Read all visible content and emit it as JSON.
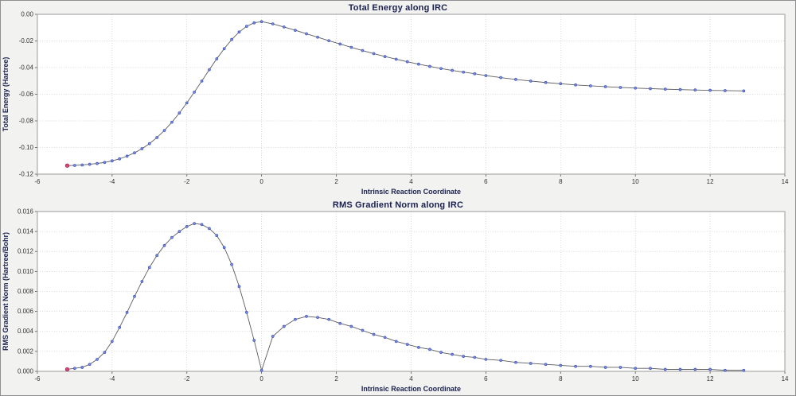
{
  "window": {
    "bg": "#f2f2f0",
    "border": "#8f8f8f"
  },
  "colors": {
    "title": "#1a2050",
    "axis_label": "#1a2050",
    "tick_label": "#333333",
    "grid": "#cbcbcb",
    "plot_border": "#9a9a9a",
    "plot_bg": "#ffffff",
    "line": "#5c5c5c",
    "marker_fill": "#7b8ede",
    "marker_edge": "#3d52c4",
    "first_point_fill": "#d04878",
    "first_point_edge": "#a82255"
  },
  "chart_data": [
    {
      "type": "line",
      "title": "Total Energy along IRC",
      "xlabel": "Intrinsic Reaction Coordinate",
      "ylabel": "Total Energy (Hartree)",
      "xlim": [
        -6,
        14
      ],
      "ylim": [
        -0.12,
        0.0
      ],
      "grid": true,
      "legend": false,
      "marker": "circle",
      "xticks": [
        -6,
        -4,
        -2,
        0,
        2,
        4,
        6,
        8,
        10,
        12,
        14
      ],
      "xtick_labels": [
        "-6",
        "-4",
        "-2",
        "0",
        "2",
        "4",
        "6",
        "8",
        "10",
        "12",
        "14"
      ],
      "yticks": [
        0.0,
        -0.02,
        -0.04,
        -0.06,
        -0.08,
        -0.1,
        -0.12
      ],
      "ytick_labels": [
        "0.00",
        "-0.02",
        "-0.04",
        "-0.06",
        "-0.08",
        "-0.10",
        "-0.12"
      ],
      "x": [
        -5.2,
        -5.0,
        -4.8,
        -4.6,
        -4.4,
        -4.2,
        -4.0,
        -3.8,
        -3.6,
        -3.4,
        -3.2,
        -3.0,
        -2.8,
        -2.6,
        -2.4,
        -2.2,
        -2.0,
        -1.8,
        -1.6,
        -1.4,
        -1.2,
        -1.0,
        -0.8,
        -0.6,
        -0.4,
        -0.2,
        0.0,
        0.3,
        0.6,
        0.9,
        1.2,
        1.5,
        1.8,
        2.1,
        2.4,
        2.7,
        3.0,
        3.3,
        3.6,
        3.9,
        4.2,
        4.5,
        4.8,
        5.1,
        5.4,
        5.7,
        6.0,
        6.4,
        6.8,
        7.2,
        7.6,
        8.0,
        8.4,
        8.8,
        9.2,
        9.6,
        10.0,
        10.4,
        10.8,
        11.2,
        11.6,
        12.0,
        12.4,
        12.9
      ],
      "y": [
        -0.1136,
        -0.1134,
        -0.1131,
        -0.1126,
        -0.112,
        -0.1112,
        -0.11,
        -0.1085,
        -0.1065,
        -0.104,
        -0.1009,
        -0.0971,
        -0.0925,
        -0.0872,
        -0.081,
        -0.0741,
        -0.0665,
        -0.0584,
        -0.0501,
        -0.0416,
        -0.0334,
        -0.0258,
        -0.0189,
        -0.0133,
        -0.009,
        -0.0064,
        -0.0055,
        -0.0072,
        -0.0095,
        -0.012,
        -0.0146,
        -0.0172,
        -0.0198,
        -0.0223,
        -0.0248,
        -0.0272,
        -0.0295,
        -0.0317,
        -0.0337,
        -0.0356,
        -0.0374,
        -0.0391,
        -0.0407,
        -0.0421,
        -0.0434,
        -0.0446,
        -0.046,
        -0.0475,
        -0.0489,
        -0.0501,
        -0.0512,
        -0.0521,
        -0.053,
        -0.0537,
        -0.0543,
        -0.0549,
        -0.0554,
        -0.0558,
        -0.0562,
        -0.0565,
        -0.0568,
        -0.0571,
        -0.0573,
        -0.0575
      ]
    },
    {
      "type": "line",
      "title": "RMS Gradient Norm along IRC",
      "xlabel": "Intrinsic Reaction Coordinate",
      "ylabel": "RMS Gradient Norm (Hartree/Bohr)",
      "xlim": [
        -6,
        14
      ],
      "ylim": [
        0.0,
        0.016
      ],
      "grid": true,
      "legend": false,
      "marker": "circle",
      "xticks": [
        -6,
        -4,
        -2,
        0,
        2,
        4,
        6,
        8,
        10,
        12,
        14
      ],
      "xtick_labels": [
        "-6",
        "-4",
        "-2",
        "0",
        "2",
        "4",
        "6",
        "8",
        "10",
        "12",
        "14"
      ],
      "yticks": [
        0.0,
        0.002,
        0.004,
        0.006,
        0.008,
        0.01,
        0.012,
        0.014,
        0.016
      ],
      "ytick_labels": [
        "0.000",
        "0.002",
        "0.004",
        "0.006",
        "0.008",
        "0.010",
        "0.012",
        "0.014",
        "0.016"
      ],
      "x": [
        -5.2,
        -5.0,
        -4.8,
        -4.6,
        -4.4,
        -4.2,
        -4.0,
        -3.8,
        -3.6,
        -3.4,
        -3.2,
        -3.0,
        -2.8,
        -2.6,
        -2.4,
        -2.2,
        -2.0,
        -1.8,
        -1.6,
        -1.4,
        -1.2,
        -1.0,
        -0.8,
        -0.6,
        -0.4,
        -0.2,
        0.0,
        0.3,
        0.6,
        0.9,
        1.2,
        1.5,
        1.8,
        2.1,
        2.4,
        2.7,
        3.0,
        3.3,
        3.6,
        3.9,
        4.2,
        4.5,
        4.8,
        5.1,
        5.4,
        5.7,
        6.0,
        6.4,
        6.8,
        7.2,
        7.6,
        8.0,
        8.4,
        8.8,
        9.2,
        9.6,
        10.0,
        10.4,
        10.8,
        11.2,
        11.6,
        12.0,
        12.4,
        12.9
      ],
      "y": [
        0.0002,
        0.0003,
        0.0004,
        0.0007,
        0.0012,
        0.0019,
        0.003,
        0.0044,
        0.0059,
        0.0075,
        0.009,
        0.0104,
        0.0116,
        0.0126,
        0.0134,
        0.014,
        0.0145,
        0.0148,
        0.0147,
        0.0143,
        0.0136,
        0.0124,
        0.0107,
        0.0085,
        0.0059,
        0.0031,
        0.0001,
        0.0035,
        0.0045,
        0.0052,
        0.0055,
        0.0054,
        0.0052,
        0.0048,
        0.0045,
        0.0041,
        0.0037,
        0.0034,
        0.003,
        0.0027,
        0.0024,
        0.0022,
        0.0019,
        0.0017,
        0.0015,
        0.0014,
        0.0012,
        0.0011,
        0.0009,
        0.0008,
        0.0007,
        0.0006,
        0.0005,
        0.0005,
        0.0004,
        0.0004,
        0.0003,
        0.0003,
        0.0002,
        0.0002,
        0.0002,
        0.0002,
        0.0001,
        0.0001
      ]
    }
  ]
}
